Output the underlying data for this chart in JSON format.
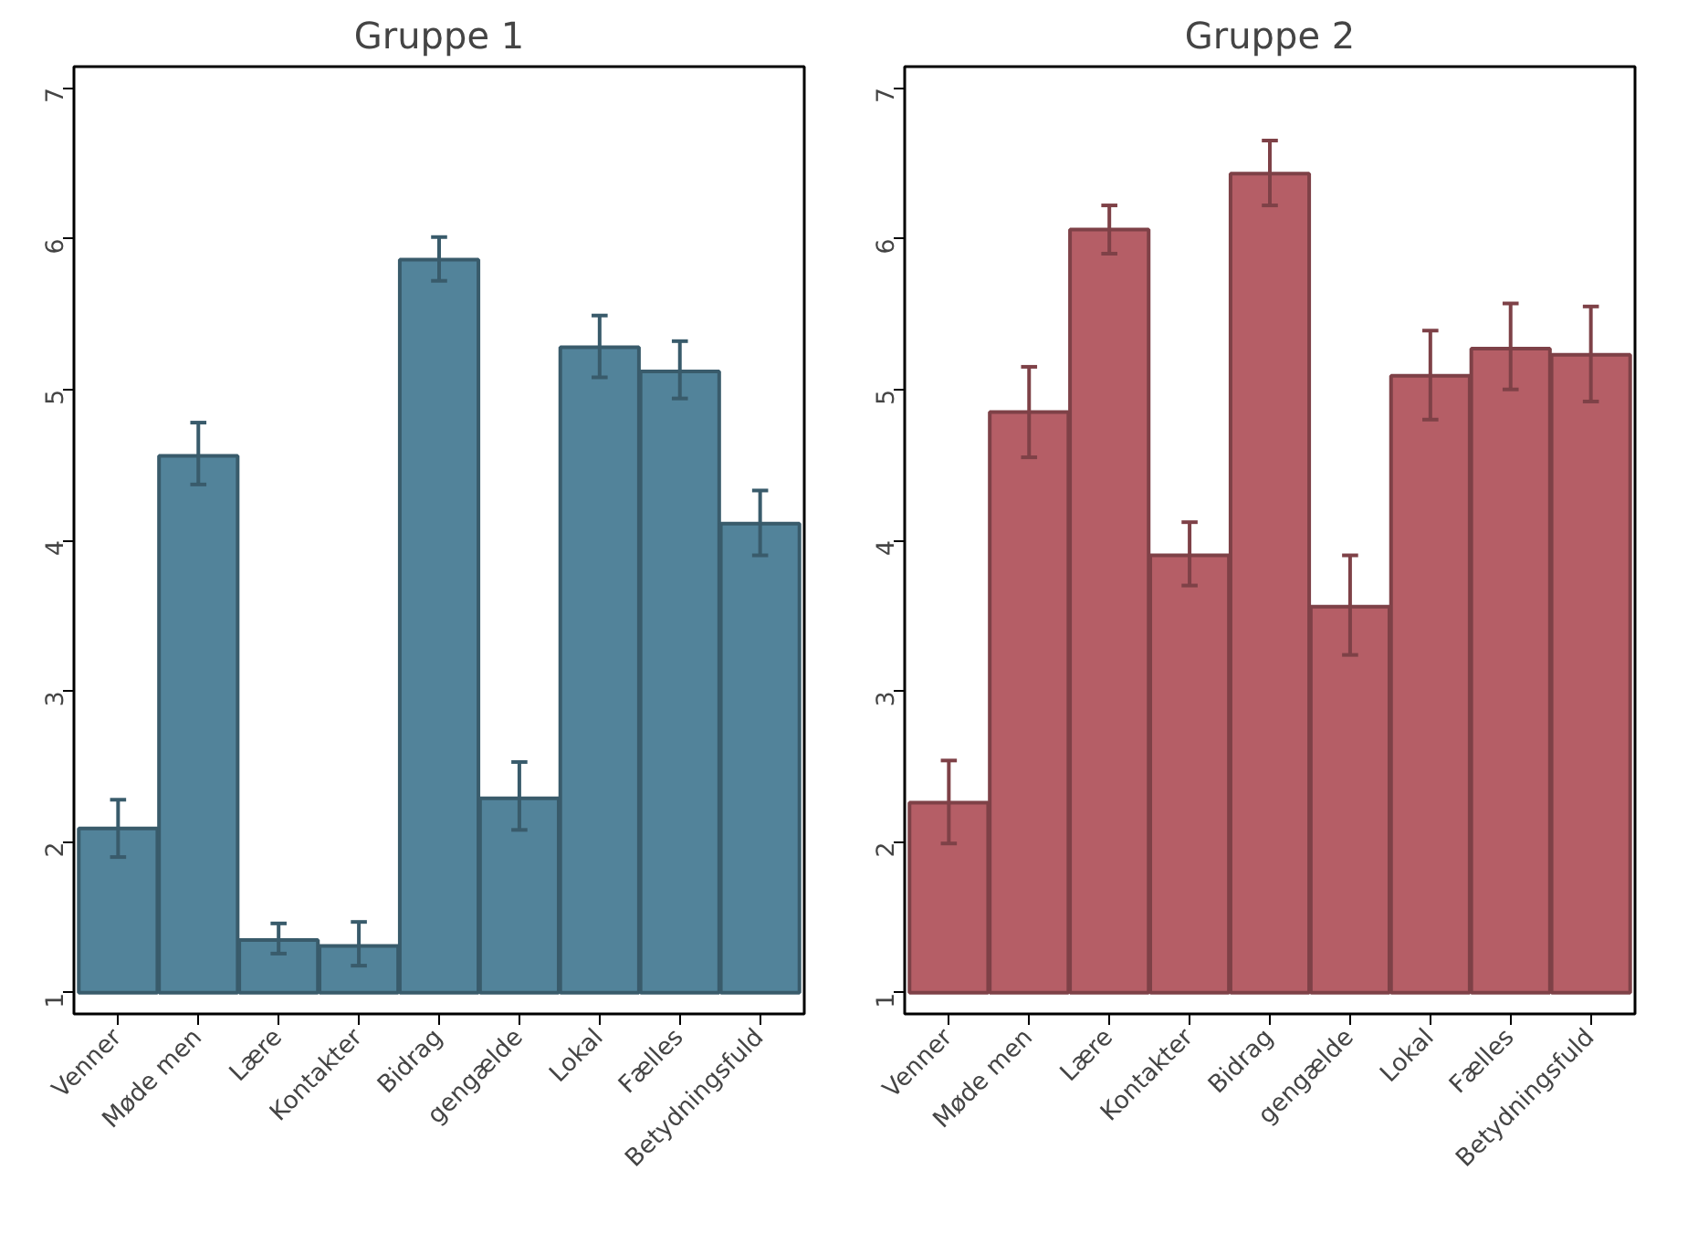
{
  "chart_data": [
    {
      "type": "bar",
      "title": "Gruppe 1",
      "categories": [
        "Venner",
        "Møde men",
        "Lære",
        "Kontakter",
        "Bidrag",
        "gengælde",
        "Lokal",
        "Fælles",
        "Betydningsfuld"
      ],
      "base": [
        1,
        1,
        1,
        1,
        1,
        1,
        1,
        1,
        1
      ],
      "values": [
        1.09,
        3.56,
        0.35,
        0.31,
        4.86,
        1.29,
        4.28,
        4.12,
        3.11
      ],
      "errors": [
        [
          1.9,
          2.28
        ],
        [
          4.37,
          4.78
        ],
        [
          1.26,
          1.46
        ],
        [
          1.18,
          1.47
        ],
        [
          5.72,
          6.01
        ],
        [
          2.08,
          2.53
        ],
        [
          5.08,
          5.49
        ],
        [
          4.94,
          5.32
        ],
        [
          3.9,
          4.33
        ]
      ],
      "color": "#52839a",
      "ylim": [
        0.86,
        7.14
      ],
      "yticks": [
        1,
        2,
        3,
        4,
        5,
        6,
        7
      ],
      "grid": false
    },
    {
      "type": "bar",
      "title": "Gruppe 2",
      "categories": [
        "Venner",
        "Møde men",
        "Lære",
        "Kontakter",
        "Bidrag",
        "gengælde",
        "Lokal",
        "Fælles",
        "Betydningsfuld"
      ],
      "base": [
        1,
        1,
        1,
        1,
        1,
        1,
        1,
        1,
        1
      ],
      "values": [
        1.26,
        3.85,
        5.06,
        2.9,
        5.43,
        2.56,
        4.09,
        4.27,
        4.23
      ],
      "errors": [
        [
          1.99,
          2.54
        ],
        [
          4.55,
          5.15
        ],
        [
          5.9,
          6.22
        ],
        [
          3.7,
          4.12
        ],
        [
          6.22,
          6.65
        ],
        [
          3.24,
          3.9
        ],
        [
          4.8,
          5.39
        ],
        [
          5.0,
          5.57
        ],
        [
          4.92,
          5.55
        ]
      ],
      "color": "#b55e66",
      "ylim": [
        0.86,
        7.14
      ],
      "yticks": [
        1,
        2,
        3,
        4,
        5,
        6,
        7
      ],
      "grid": false
    }
  ]
}
